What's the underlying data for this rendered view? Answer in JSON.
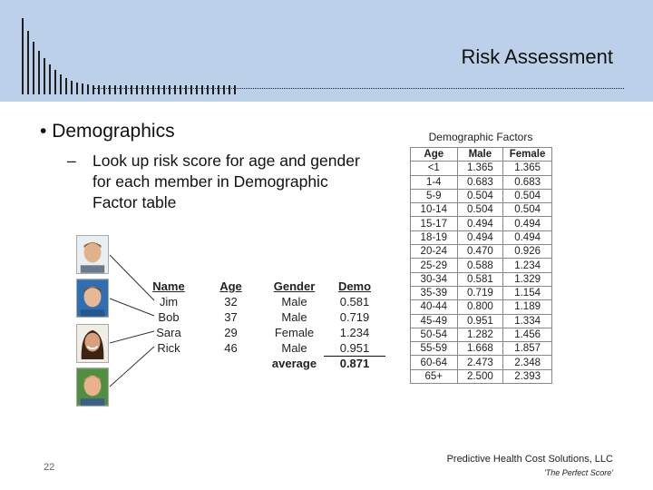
{
  "slide": {
    "title": "Risk Assessment",
    "page_number": "22"
  },
  "content": {
    "bullet_main": "Demographics",
    "bullet_sub": "Look up risk score for age and gender for each member in Demographic Factor table"
  },
  "members_table": {
    "headers": [
      "Name",
      "Age",
      "Gender",
      "Demo"
    ],
    "rows": [
      [
        "Jim",
        "32",
        "Male",
        "0.581"
      ],
      [
        "Bob",
        "37",
        "Male",
        "0.719"
      ],
      [
        "Sara",
        "29",
        "Female",
        "1.234"
      ],
      [
        "Rick",
        "46",
        "Male",
        "0.951"
      ]
    ],
    "average_label": "average",
    "average_value": "0.871"
  },
  "factor_table": {
    "title": "Demographic Factors",
    "headers": [
      "Age",
      "Male",
      "Female"
    ],
    "rows": [
      [
        "<1",
        "1.365",
        "1.365"
      ],
      [
        "1-4",
        "0.683",
        "0.683"
      ],
      [
        "5-9",
        "0.504",
        "0.504"
      ],
      [
        "10-14",
        "0.504",
        "0.504"
      ],
      [
        "15-17",
        "0.494",
        "0.494"
      ],
      [
        "18-19",
        "0.494",
        "0.494"
      ],
      [
        "20-24",
        "0.470",
        "0.926"
      ],
      [
        "25-29",
        "0.588",
        "1.234"
      ],
      [
        "30-34",
        "0.581",
        "1.329"
      ],
      [
        "35-39",
        "0.719",
        "1.154"
      ],
      [
        "40-44",
        "0.800",
        "1.189"
      ],
      [
        "45-49",
        "0.951",
        "1.334"
      ],
      [
        "50-54",
        "1.282",
        "1.456"
      ],
      [
        "55-59",
        "1.668",
        "1.857"
      ],
      [
        "60-64",
        "2.473",
        "2.348"
      ],
      [
        "65+",
        "2.500",
        "2.393"
      ]
    ]
  },
  "footer": {
    "company": "Predictive Health Cost Solutions, LLC",
    "tagline": "'The Perfect Score'"
  },
  "colors": {
    "header_band": "#bdd0e9"
  }
}
